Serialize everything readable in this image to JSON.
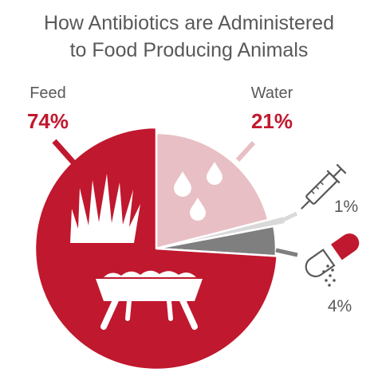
{
  "title": {
    "line1": "How Antibiotics are Administered",
    "line2": "to Food Producing Animals"
  },
  "colors": {
    "feed": "#C0182E",
    "water": "#E8BFC4",
    "injection": "#D9D9D9",
    "oral": "#7F7F7F",
    "text": "#595959",
    "white": "#FFFFFF"
  },
  "chart_data": {
    "type": "pie",
    "title": "How Antibiotics are Administered to Food Producing Animals",
    "slices": [
      {
        "name": "Feed",
        "value": 74,
        "label": "74%",
        "icon": "grass-and-feeder-icon"
      },
      {
        "name": "Water",
        "value": 21,
        "label": "21%",
        "icon": "water-drops-icon"
      },
      {
        "name": "",
        "value": 1,
        "label": "1%",
        "icon": "syringe-icon"
      },
      {
        "name": "",
        "value": 4,
        "label": "4%",
        "icon": "pill-capsule-icon"
      }
    ]
  }
}
